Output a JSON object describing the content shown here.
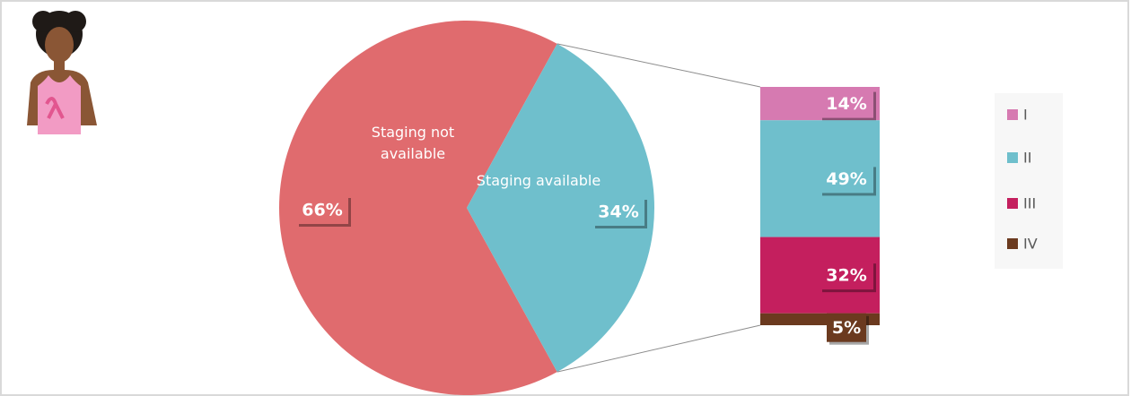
{
  "chart_data": [
    {
      "type": "pie",
      "categories": [
        "Staging not available",
        "Staging available"
      ],
      "values": [
        66,
        34
      ],
      "value_labels": [
        "66%",
        "34%"
      ],
      "colors": [
        "#e06b6e",
        "#6fbfcc"
      ]
    },
    {
      "type": "stacked-bar",
      "categories": [
        "I",
        "II",
        "III",
        "IV"
      ],
      "values": [
        14,
        49,
        32,
        5
      ],
      "value_labels": [
        "14%",
        "49%",
        "32%",
        "5%"
      ],
      "colors": [
        "#d67ab1",
        "#6fbfcc",
        "#c41f5e",
        "#6b3a1f"
      ],
      "legend": "right"
    }
  ]
}
